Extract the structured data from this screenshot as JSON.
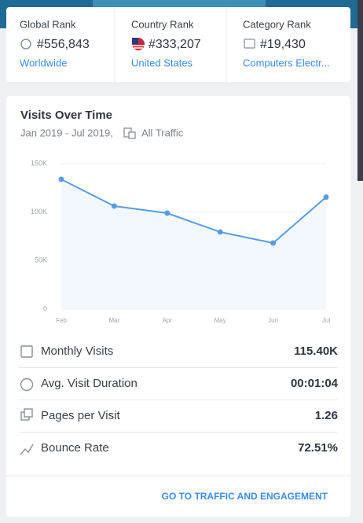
{
  "rank_cards": [
    {
      "label": "Global Rank",
      "value": "#556,843",
      "link": "Worldwide"
    },
    {
      "label": "Country Rank",
      "value": "#333,207",
      "link": "United States"
    },
    {
      "label": "Category Rank",
      "value": "#19,430",
      "link": "Computers Electr..."
    }
  ],
  "chart_data": {
    "type": "line",
    "title": "Visits Over Time",
    "subtitle": "Jan 2019 - Jul 2019,",
    "traffic_filter": "All Traffic",
    "categories": [
      "Feb",
      "Mar",
      "Apr",
      "May",
      "Jun",
      "Jul"
    ],
    "values": [
      133800,
      106200,
      98900,
      79500,
      68100,
      115400
    ],
    "color": "#5b9be6",
    "area_color": "#f3f7fe",
    "ylim": [
      0,
      150000
    ],
    "yticks": [
      0,
      {
        "value": 50000,
        "label": "50K"
      },
      {
        "value": 100000,
        "label": "100K"
      },
      {
        "value": 150000,
        "label": "150K"
      }
    ],
    "grid": true
  },
  "metrics": [
    {
      "label": "Monthly Visits",
      "value": "115.40K"
    },
    {
      "label": "Avg. Visit Duration",
      "value": "00:01:04"
    },
    {
      "label": "Pages per Visit",
      "value": "1.26"
    },
    {
      "label": "Bounce Rate",
      "value": "72.51%"
    }
  ],
  "footer_link": "GO TO TRAFFIC AND ENGAGEMENT"
}
